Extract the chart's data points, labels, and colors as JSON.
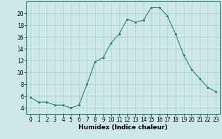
{
  "x": [
    0,
    1,
    2,
    3,
    4,
    5,
    6,
    7,
    8,
    9,
    10,
    11,
    12,
    13,
    14,
    15,
    16,
    17,
    18,
    19,
    20,
    21,
    22,
    23
  ],
  "y": [
    5.8,
    5.0,
    5.0,
    4.5,
    4.5,
    4.0,
    4.5,
    8.0,
    11.8,
    12.5,
    15.0,
    16.5,
    19.0,
    18.5,
    18.8,
    21.0,
    21.0,
    19.5,
    16.5,
    13.0,
    10.5,
    9.0,
    7.5,
    6.8
  ],
  "xlabel": "Humidex (Indice chaleur)",
  "xlim": [
    -0.5,
    23.5
  ],
  "ylim": [
    3,
    22
  ],
  "yticks": [
    4,
    6,
    8,
    10,
    12,
    14,
    16,
    18,
    20
  ],
  "xticks": [
    0,
    1,
    2,
    3,
    4,
    5,
    6,
    7,
    8,
    9,
    10,
    11,
    12,
    13,
    14,
    15,
    16,
    17,
    18,
    19,
    20,
    21,
    22,
    23
  ],
  "line_color": "#2e7d6e",
  "marker_color": "#2e7d6e",
  "bg_color": "#cce8e8",
  "grid_color": "#aacfcf",
  "xlabel_fontsize": 6.5,
  "tick_fontsize": 5.5
}
